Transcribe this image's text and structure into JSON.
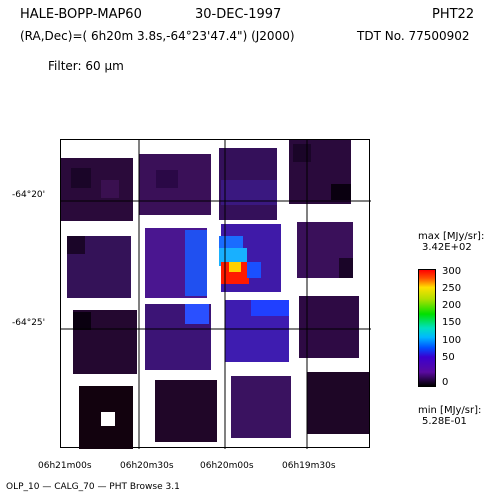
{
  "header": {
    "object": "HALE-BOPP-MAP60",
    "date": "30-DEC-1997",
    "instrument": "PHT22",
    "coords": "(RA,Dec)=( 6h20m 3.8s,-64°23'47.4\") (J2000)",
    "tdt": "TDT No. 77500902",
    "filter": "Filter:  60 μm"
  },
  "axes": {
    "dec_labels": [
      "-64°20'",
      "-64°25'"
    ],
    "ra_labels": [
      "06h21m00s",
      "06h20m30s",
      "06h20m00s",
      "06h19m30s"
    ]
  },
  "colorbar": {
    "max_label": "max [MJy/sr]:",
    "max_value": "3.42E+02",
    "min_label": "min [MJy/sr]:",
    "min_value": "5.28E-01",
    "ticks": [
      "300",
      "250",
      "200",
      "150",
      "100",
      "50",
      "0"
    ]
  },
  "footer": "OLP_10   — CALG_70   — PHT Browse 3.1"
}
